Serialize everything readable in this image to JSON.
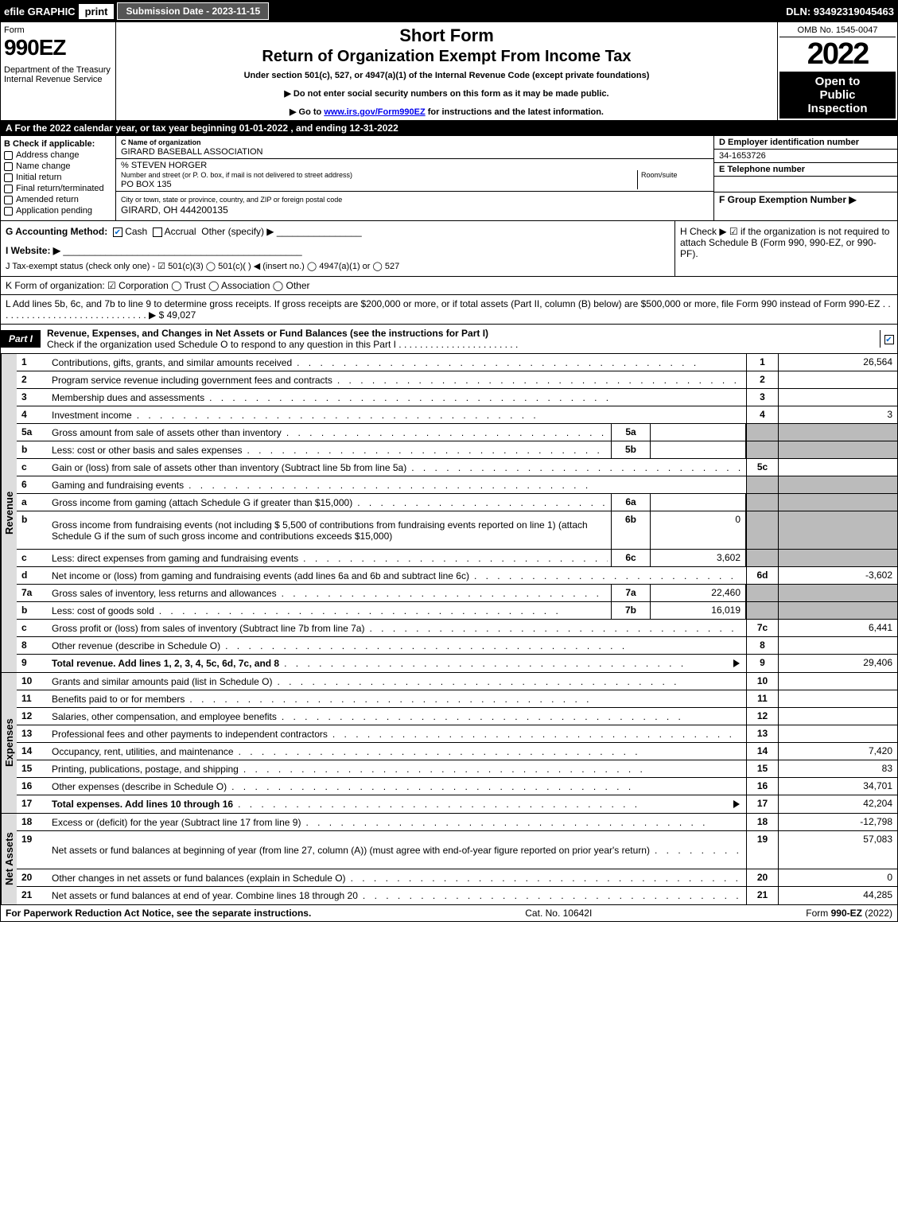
{
  "top": {
    "efile": "efile GRAPHIC",
    "print": "print",
    "subdate": "Submission Date - 2023-11-15",
    "dln": "DLN: 93492319045463"
  },
  "header": {
    "form_label": "Form",
    "form_num": "990EZ",
    "dept": "Department of the Treasury\nInternal Revenue Service",
    "title1": "Short Form",
    "title2": "Return of Organization Exempt From Income Tax",
    "sub": "Under section 501(c), 527, or 4947(a)(1) of the Internal Revenue Code (except private foundations)",
    "sub2a": "▶ Do not enter social security numbers on this form as it may be made public.",
    "sub2b": "▶ Go to www.irs.gov/Form990EZ for instructions and the latest information.",
    "omb": "OMB No. 1545-0047",
    "year": "2022",
    "open1": "Open to",
    "open2": "Public",
    "open3": "Inspection"
  },
  "row_a": "A  For the 2022 calendar year, or tax year beginning 01-01-2022  , and ending 12-31-2022",
  "b": {
    "label": "B  Check if applicable:",
    "items": [
      "Address change",
      "Name change",
      "Initial return",
      "Final return/terminated",
      "Amended return",
      "Application pending"
    ]
  },
  "c": {
    "label": "C Name of organization",
    "name": "GIRARD BASEBALL ASSOCIATION",
    "care": "% STEVEN HORGER",
    "addr_label": "Number and street (or P. O. box, if mail is not delivered to street address)",
    "room_label": "Room/suite",
    "addr": "PO BOX 135",
    "city_label": "City or town, state or province, country, and ZIP or foreign postal code",
    "city": "GIRARD, OH  444200135"
  },
  "d": {
    "label": "D Employer identification number",
    "value": "34-1653726",
    "e_label": "E Telephone number",
    "f_label": "F Group Exemption Number   ▶"
  },
  "g": {
    "label": "G Accounting Method:",
    "cash": "Cash",
    "accrual": "Accrual",
    "other": "Other (specify) ▶"
  },
  "h": "H  Check ▶  ☑  if the organization is not required to attach Schedule B (Form 990, 990-EZ, or 990-PF).",
  "i": "I Website: ▶",
  "j": "J Tax-exempt status (check only one) - ☑ 501(c)(3)  ◯ 501(c)(  ) ◀ (insert no.)  ◯ 4947(a)(1) or  ◯ 527",
  "k": "K Form of organization:   ☑ Corporation   ◯ Trust   ◯ Association   ◯ Other",
  "l": "L Add lines 5b, 6c, and 7b to line 9 to determine gross receipts. If gross receipts are $200,000 or more, or if total assets (Part II, column (B) below) are $500,000 or more, file Form 990 instead of Form 990-EZ . . . . . . . . . . . . . . . . . . . . . . . . . . . . . ▶ $ 49,027",
  "part1": {
    "label": "Part I",
    "title": "Revenue, Expenses, and Changes in Net Assets or Fund Balances (see the instructions for Part I)",
    "subtitle": "Check if the organization used Schedule O to respond to any question in this Part I . . . . . . . . . . . . . . . . . . . . . . ."
  },
  "revenue": [
    {
      "n": "1",
      "d": "Contributions, gifts, grants, and similar amounts received",
      "ref": "1",
      "v": "26,564"
    },
    {
      "n": "2",
      "d": "Program service revenue including government fees and contracts",
      "ref": "2",
      "v": ""
    },
    {
      "n": "3",
      "d": "Membership dues and assessments",
      "ref": "3",
      "v": ""
    },
    {
      "n": "4",
      "d": "Investment income",
      "ref": "4",
      "v": "3"
    },
    {
      "n": "5a",
      "d": "Gross amount from sale of assets other than inventory",
      "sub": "5a",
      "sv": "",
      "ref": "",
      "v": "",
      "shaded": true
    },
    {
      "n": "b",
      "d": "Less: cost or other basis and sales expenses",
      "sub": "5b",
      "sv": "",
      "ref": "",
      "v": "",
      "shaded": true
    },
    {
      "n": "c",
      "d": "Gain or (loss) from sale of assets other than inventory (Subtract line 5b from line 5a)",
      "ref": "5c",
      "v": ""
    },
    {
      "n": "6",
      "d": "Gaming and fundraising events",
      "ref": "",
      "v": "",
      "shaded": true
    },
    {
      "n": "a",
      "d": "Gross income from gaming (attach Schedule G if greater than $15,000)",
      "sub": "6a",
      "sv": "",
      "ref": "",
      "v": "",
      "shaded": true
    },
    {
      "n": "b",
      "d": "Gross income from fundraising events (not including $  5,500           of contributions from fundraising events reported on line 1) (attach Schedule G if the sum of such gross income and contributions exceeds $15,000)",
      "sub": "6b",
      "sv": "0",
      "ref": "",
      "v": "",
      "shaded": true,
      "tall": true
    },
    {
      "n": "c",
      "d": "Less: direct expenses from gaming and fundraising events",
      "sub": "6c",
      "sv": "3,602",
      "ref": "",
      "v": "",
      "shaded": true
    },
    {
      "n": "d",
      "d": "Net income or (loss) from gaming and fundraising events (add lines 6a and 6b and subtract line 6c)",
      "ref": "6d",
      "v": "-3,602"
    },
    {
      "n": "7a",
      "d": "Gross sales of inventory, less returns and allowances",
      "sub": "7a",
      "sv": "22,460",
      "ref": "",
      "v": "",
      "shaded": true
    },
    {
      "n": "b",
      "d": "Less: cost of goods sold",
      "sub": "7b",
      "sv": "16,019",
      "ref": "",
      "v": "",
      "shaded": true
    },
    {
      "n": "c",
      "d": "Gross profit or (loss) from sales of inventory (Subtract line 7b from line 7a)",
      "ref": "7c",
      "v": "6,441"
    },
    {
      "n": "8",
      "d": "Other revenue (describe in Schedule O)",
      "ref": "8",
      "v": ""
    },
    {
      "n": "9",
      "d": "Total revenue. Add lines 1, 2, 3, 4, 5c, 6d, 7c, and 8",
      "ref": "9",
      "v": "29,406",
      "bold": true,
      "arrow": true
    }
  ],
  "expenses": [
    {
      "n": "10",
      "d": "Grants and similar amounts paid (list in Schedule O)",
      "ref": "10",
      "v": ""
    },
    {
      "n": "11",
      "d": "Benefits paid to or for members",
      "ref": "11",
      "v": ""
    },
    {
      "n": "12",
      "d": "Salaries, other compensation, and employee benefits",
      "ref": "12",
      "v": ""
    },
    {
      "n": "13",
      "d": "Professional fees and other payments to independent contractors",
      "ref": "13",
      "v": ""
    },
    {
      "n": "14",
      "d": "Occupancy, rent, utilities, and maintenance",
      "ref": "14",
      "v": "7,420"
    },
    {
      "n": "15",
      "d": "Printing, publications, postage, and shipping",
      "ref": "15",
      "v": "83"
    },
    {
      "n": "16",
      "d": "Other expenses (describe in Schedule O)",
      "ref": "16",
      "v": "34,701"
    },
    {
      "n": "17",
      "d": "Total expenses. Add lines 10 through 16",
      "ref": "17",
      "v": "42,204",
      "bold": true,
      "arrow": true
    }
  ],
  "netassets": [
    {
      "n": "18",
      "d": "Excess or (deficit) for the year (Subtract line 17 from line 9)",
      "ref": "18",
      "v": "-12,798"
    },
    {
      "n": "19",
      "d": "Net assets or fund balances at beginning of year (from line 27, column (A)) (must agree with end-of-year figure reported on prior year's return)",
      "ref": "19",
      "v": "57,083",
      "tall": true
    },
    {
      "n": "20",
      "d": "Other changes in net assets or fund balances (explain in Schedule O)",
      "ref": "20",
      "v": "0"
    },
    {
      "n": "21",
      "d": "Net assets or fund balances at end of year. Combine lines 18 through 20",
      "ref": "21",
      "v": "44,285"
    }
  ],
  "footer": {
    "left": "For Paperwork Reduction Act Notice, see the separate instructions.",
    "mid": "Cat. No. 10642I",
    "right": "Form 990-EZ (2022)"
  },
  "side_labels": {
    "rev": "Revenue",
    "exp": "Expenses",
    "net": "Net Assets"
  }
}
